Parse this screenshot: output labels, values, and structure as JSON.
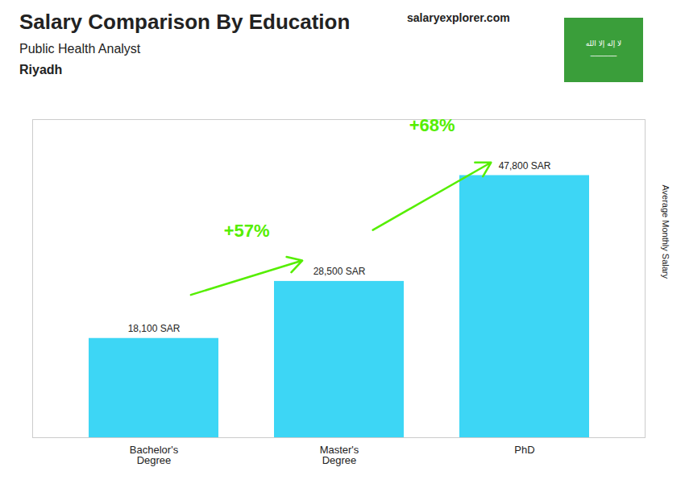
{
  "chart_data": {
    "type": "bar",
    "title": "Salary Comparison By Education",
    "subtitle": "Public Health Analyst",
    "location": "Riyadh",
    "ylabel": "Average Monthly Salary",
    "categories": [
      "Bachelor's\nDegree",
      "Master's\nDegree",
      "PhD"
    ],
    "values": [
      18100,
      28500,
      47800
    ],
    "value_labels": [
      "18,100 SAR",
      "28,500 SAR",
      "47,800 SAR"
    ],
    "data_labels": true,
    "color": "#3DD6F5",
    "ylim": [
      0,
      58000
    ],
    "yticks": [],
    "tick_labels": "x",
    "grid": false,
    "annotations": [
      {
        "text": "+57%",
        "from": "Bachelor's\nDegree",
        "to": "Master's\nDegree",
        "color": "#55EE00"
      },
      {
        "text": "+68%",
        "from": "Master's\nDegree",
        "to": "PhD",
        "color": "#55EE00"
      }
    ],
    "watermark": "salaryexplorer.com",
    "flag_texts": [
      "لا إله إلا الله",
      "──────"
    ],
    "flag_color": "#3a9e3a"
  }
}
